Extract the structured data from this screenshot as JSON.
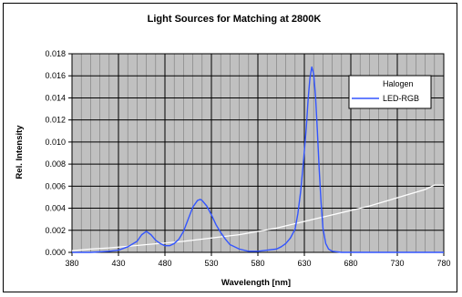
{
  "chart_data": {
    "type": "line",
    "title": "Light Sources for Matching at 2800K",
    "xlabel": "Wavelength [nm]",
    "ylabel": "Rel. Intensity",
    "xlim": [
      380,
      780
    ],
    "ylim": [
      0,
      0.018
    ],
    "x_ticks": [
      380,
      430,
      480,
      530,
      580,
      630,
      680,
      730,
      780
    ],
    "x_tick_labels": [
      "380",
      "430",
      "480",
      "530",
      "580",
      "630",
      "680",
      "730",
      "780"
    ],
    "y_ticks": [
      0,
      0.002,
      0.004,
      0.006,
      0.008,
      0.01,
      0.012,
      0.014,
      0.016,
      0.018
    ],
    "y_tick_labels": [
      "0.000",
      "0.002",
      "0.004",
      "0.006",
      "0.008",
      "0.010",
      "0.012",
      "0.014",
      "0.016",
      "0.018"
    ],
    "x_minor_step": 10,
    "grid": true,
    "plot_background": "#c0c0c0",
    "legend_position": "top-right",
    "series": [
      {
        "name": "Halogen",
        "color": "#ffffff",
        "x": [
          380,
          400,
          420,
          440,
          460,
          480,
          500,
          520,
          540,
          560,
          580,
          600,
          620,
          640,
          660,
          680,
          700,
          720,
          740,
          760,
          770,
          780
        ],
        "y": [
          0.00015,
          0.0003,
          0.0004,
          0.00055,
          0.0007,
          0.00085,
          0.001,
          0.0012,
          0.0014,
          0.0016,
          0.0019,
          0.0022,
          0.0026,
          0.003,
          0.0034,
          0.0038,
          0.0042,
          0.0047,
          0.0052,
          0.0057,
          0.0061,
          0.0061
        ]
      },
      {
        "name": "LED-RGB",
        "color": "#3355ff",
        "x": [
          380,
          400,
          420,
          430,
          440,
          450,
          455,
          460,
          465,
          470,
          475,
          480,
          485,
          490,
          495,
          500,
          505,
          510,
          515,
          518,
          520,
          525,
          530,
          535,
          540,
          545,
          550,
          560,
          570,
          580,
          590,
          600,
          605,
          610,
          615,
          620,
          623,
          626,
          629,
          632,
          634,
          636,
          638,
          640,
          642,
          644,
          646,
          648,
          650,
          653,
          656,
          660,
          670,
          680,
          700,
          720,
          740,
          760,
          780
        ],
        "y": [
          0.0,
          0.0,
          0.0001,
          0.0002,
          0.0005,
          0.001,
          0.0016,
          0.0019,
          0.0016,
          0.0011,
          0.0008,
          0.0006,
          0.0006,
          0.0008,
          0.0012,
          0.0019,
          0.003,
          0.0041,
          0.0047,
          0.0048,
          0.0047,
          0.0042,
          0.0034,
          0.0025,
          0.0018,
          0.0012,
          0.0007,
          0.0003,
          0.0001,
          0.0001,
          0.0002,
          0.0003,
          0.0005,
          0.0008,
          0.0013,
          0.0021,
          0.0035,
          0.0055,
          0.0082,
          0.0112,
          0.0138,
          0.0158,
          0.0168,
          0.0162,
          0.0142,
          0.011,
          0.0075,
          0.0045,
          0.0022,
          0.0008,
          0.0003,
          0.0001,
          0.0,
          0.0,
          0.0,
          0.0,
          0.0,
          0.0,
          0.0
        ]
      }
    ]
  }
}
